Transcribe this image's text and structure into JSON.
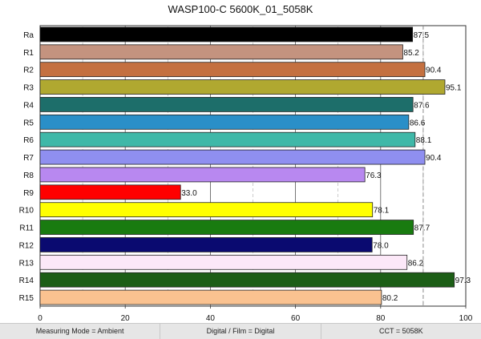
{
  "chart_data": {
    "type": "bar",
    "orientation": "horizontal",
    "title": "WASP100-C 5600K_01_5058K",
    "categories": [
      "Ra",
      "R1",
      "R2",
      "R3",
      "R4",
      "R5",
      "R6",
      "R7",
      "R8",
      "R9",
      "R10",
      "R11",
      "R12",
      "R13",
      "R14",
      "R15"
    ],
    "values": [
      87.5,
      85.2,
      90.4,
      95.1,
      87.6,
      86.6,
      88.1,
      90.4,
      76.3,
      33.0,
      78.1,
      87.7,
      78.0,
      86.2,
      97.3,
      80.2
    ],
    "value_labels": [
      "87.5",
      "85.2",
      "90.4",
      "95.1",
      "87.6",
      "86.6",
      "88.1",
      "90.4",
      "76.3",
      "33.0",
      "78.1",
      "87.7",
      "78.0",
      "86.2",
      "97.3",
      "80.2"
    ],
    "colors": [
      "#000000",
      "#c4937f",
      "#c47040",
      "#b0a830",
      "#1d6e6a",
      "#2a8fc8",
      "#3fb8a8",
      "#8f8ff0",
      "#b888f0",
      "#ff0000",
      "#ffff00",
      "#197b10",
      "#0a0a70",
      "#fce8f8",
      "#1c5e16",
      "#fac290"
    ],
    "xlim": [
      0,
      100
    ],
    "xticks": [
      0,
      20,
      40,
      60,
      80,
      100
    ],
    "xtick_labels": [
      "0",
      "20",
      "40",
      "60",
      "80",
      "100"
    ],
    "grid": "vertical",
    "reference_line": 90
  },
  "footer": {
    "measuring_mode": "Measuring Mode = Ambient",
    "digital_film": "Digital / Film = Digital",
    "cct": "CCT = 5058K"
  }
}
